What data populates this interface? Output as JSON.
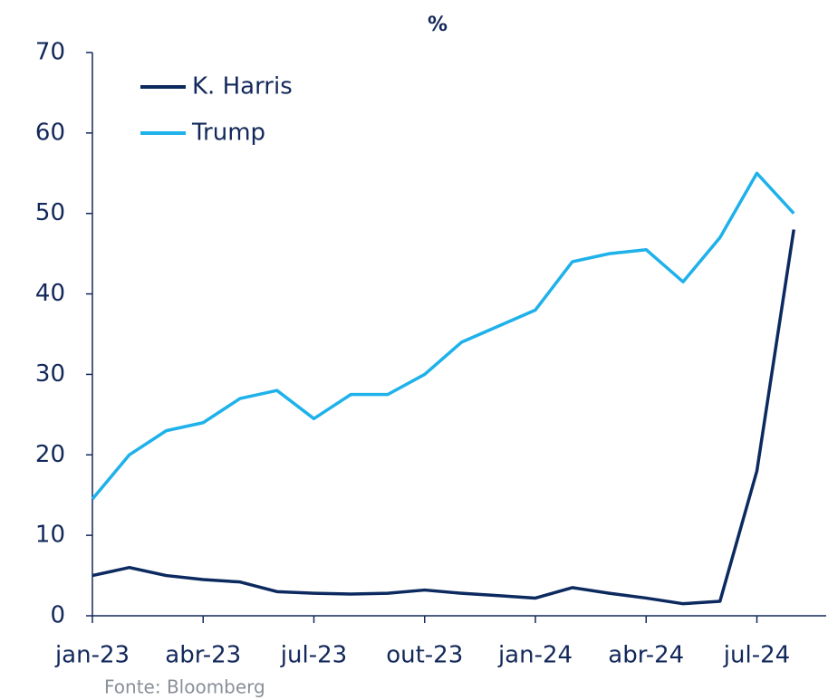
{
  "chart_data": {
    "type": "line",
    "title": "%",
    "source": "Fonte: Bloomberg",
    "categories": [
      "jan-23",
      null,
      null,
      "abr-23",
      null,
      null,
      "jul-23",
      null,
      null,
      "out-23",
      null,
      null,
      "jan-24",
      null,
      null,
      "abr-24",
      null,
      null,
      "jul-24",
      null
    ],
    "series": [
      {
        "name": "K. Harris",
        "color": "#0c2a5f",
        "values": [
          5,
          6,
          5,
          4.5,
          4.2,
          3,
          2.8,
          2.7,
          2.8,
          3.2,
          2.8,
          2.5,
          2.2,
          3.5,
          2.8,
          2.2,
          1.5,
          1.8,
          18,
          48
        ]
      },
      {
        "name": "Trump",
        "color": "#1eb1ea",
        "values": [
          14.5,
          20,
          23,
          24,
          27,
          28,
          24.5,
          27.5,
          27.5,
          30,
          34,
          36,
          38,
          44,
          45,
          45.5,
          41.5,
          47,
          55,
          50
        ]
      }
    ],
    "ylim": [
      0,
      70
    ],
    "yticks": [
      0,
      10,
      20,
      30,
      40,
      50,
      60,
      70
    ],
    "legend": "upper left"
  }
}
